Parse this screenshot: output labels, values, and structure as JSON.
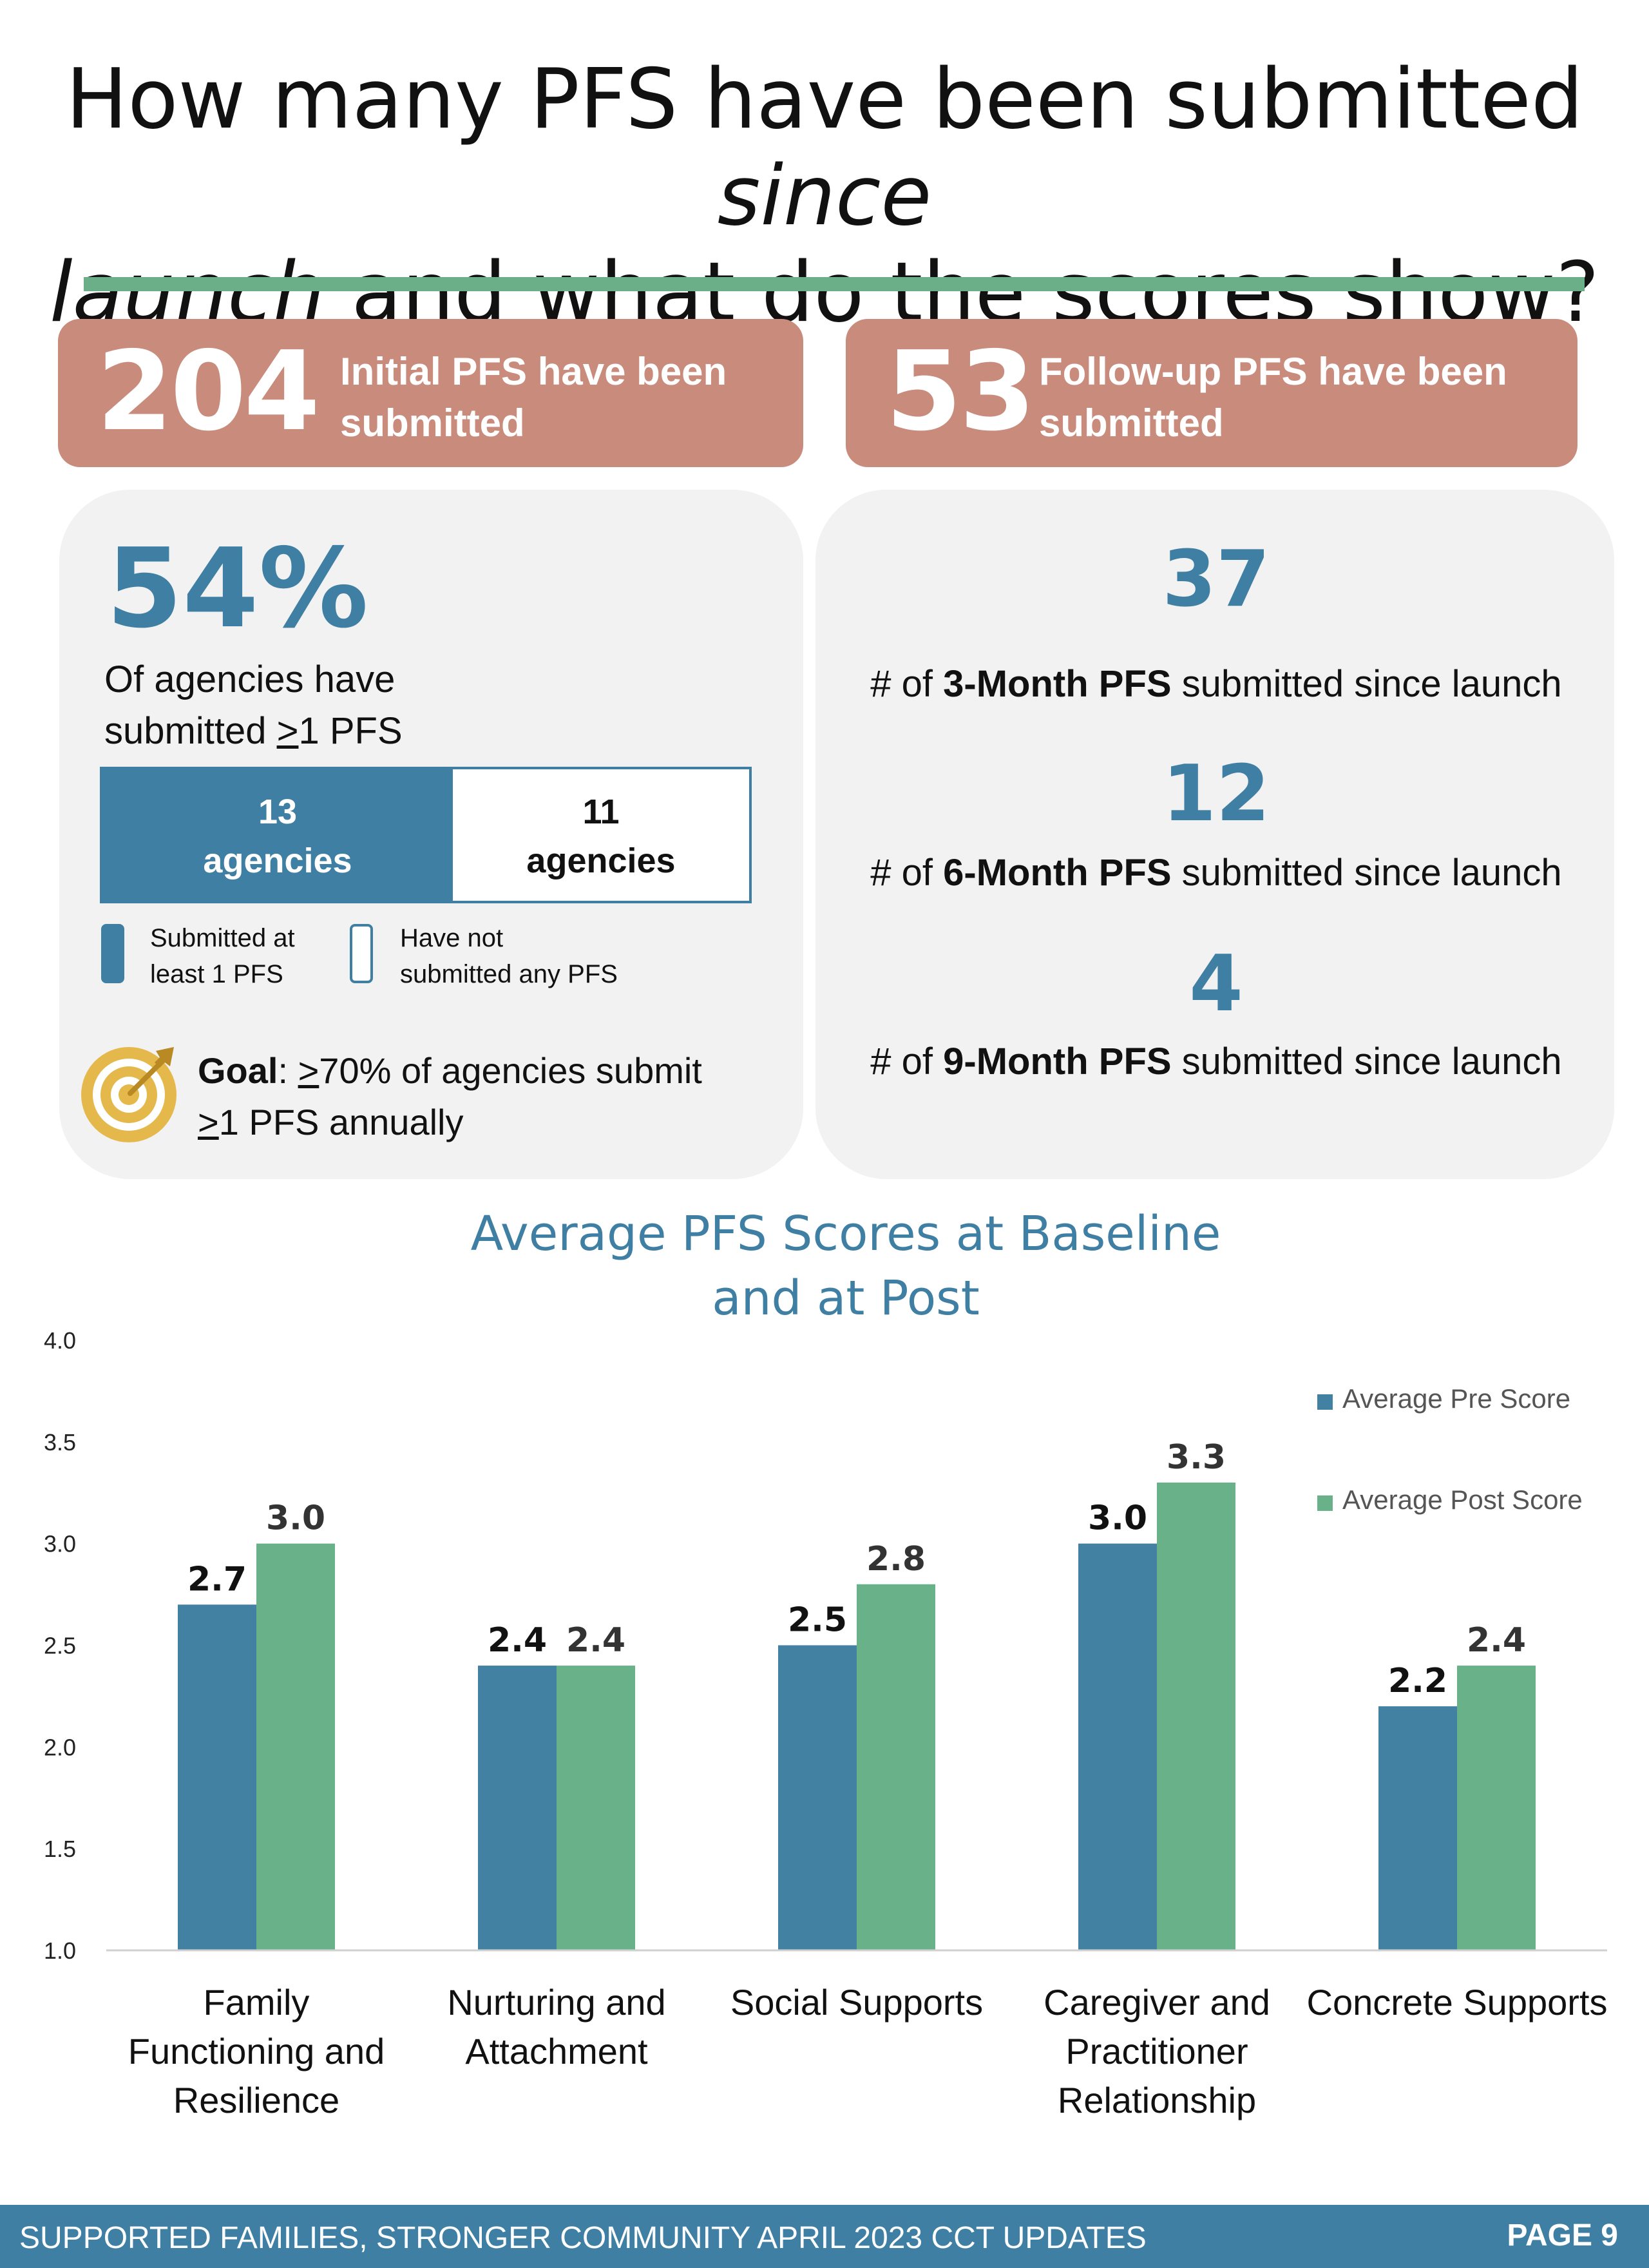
{
  "title": {
    "part1": "How many PFS have been submitted ",
    "italic1": "since",
    "italic2": "launch",
    "part2": " and what do the scores show?"
  },
  "initial": {
    "number": "204",
    "label_line1": "Initial PFS have been",
    "label_line2": "submitted"
  },
  "followup": {
    "number": "53",
    "label_line1": "Follow-up PFS have been",
    "label_line2": "submitted"
  },
  "agencies": {
    "percent": "54%",
    "text_line1": "Of agencies have",
    "text_line2_pre": "submitted ",
    "text_line2_ge": ">",
    "text_line2_post": "1 PFS",
    "submitted_count": "13",
    "submitted_unit": "agencies",
    "not_submitted_count": "11",
    "not_submitted_unit": "agencies",
    "legend_submitted_1": "Submitted at",
    "legend_submitted_2": "least 1 PFS",
    "legend_not_1": "Have not",
    "legend_not_2": "submitted any PFS",
    "goal_label": "Goal",
    "goal_text_1_pre": ": ",
    "goal_text_1_ge": ">",
    "goal_text_1_post": "70% of agencies submit",
    "goal_text_2_ge": ">",
    "goal_text_2_post": "1 PFS annually",
    "colors": {
      "submitted": "#3f7fa3",
      "not_submitted": "#ffffff"
    }
  },
  "followup_breakdown": [
    {
      "count": "37",
      "pre": "# of ",
      "bold": "3-Month PFS",
      "post": " submitted since launch"
    },
    {
      "count": "12",
      "pre": "# of ",
      "bold": "6-Month PFS",
      "post": " submitted since launch"
    },
    {
      "count": "4",
      "pre": "# of ",
      "bold": "9-Month PFS",
      "post": " submitted since launch"
    }
  ],
  "chart_data": {
    "type": "bar",
    "title": "Average PFS Scores at Baseline and at Post",
    "title_line1": "Average PFS Scores at Baseline",
    "title_line2": "and at Post",
    "categories": [
      [
        "Family",
        "Functioning and",
        "Resilience"
      ],
      [
        "Nurturing and",
        "Attachment"
      ],
      [
        "Social Supports"
      ],
      [
        "Caregiver and",
        "Practitioner",
        "Relationship"
      ],
      [
        "Concrete Supports"
      ]
    ],
    "series": [
      {
        "name": "Average Pre Score",
        "color": "#4381a3",
        "values": [
          2.7,
          2.4,
          2.5,
          3.0,
          2.2
        ],
        "labels": [
          "2.7",
          "2.4",
          "2.5",
          "3.0",
          "2.2"
        ]
      },
      {
        "name": "Average Post Score",
        "color": "#69b289",
        "values": [
          3.0,
          2.4,
          2.8,
          3.3,
          2.4
        ],
        "labels": [
          "3.0",
          "2.4",
          "2.8",
          "3.3",
          "2.4"
        ]
      }
    ],
    "yticks": [
      "1.0",
      "1.5",
      "2.0",
      "2.5",
      "3.0",
      "3.5",
      "4.0"
    ],
    "ylim": [
      1.0,
      4.0
    ],
    "legend_position": "top-right",
    "grid": false
  },
  "footer": {
    "left": "SUPPORTED FAMILIES, STRONGER COMMUNITY APRIL 2023 CCT UPDATES",
    "right": "PAGE 9"
  }
}
